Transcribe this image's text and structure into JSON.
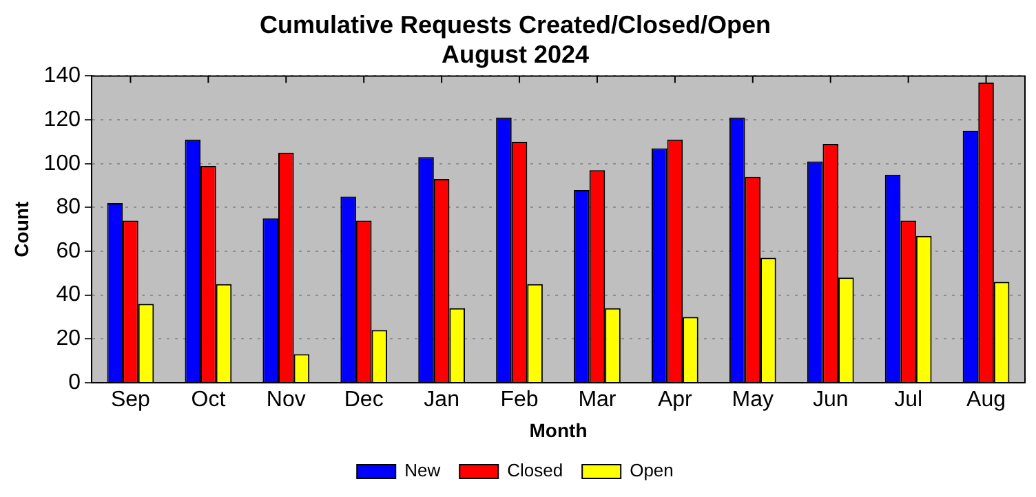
{
  "chart_data": {
    "type": "bar",
    "title": "Cumulative Requests Created/Closed/Open",
    "subtitle": "August 2024",
    "xlabel": "Month",
    "ylabel": "Count",
    "categories": [
      "Sep",
      "Oct",
      "Nov",
      "Dec",
      "Jan",
      "Feb",
      "Mar",
      "Apr",
      "May",
      "Jun",
      "Jul",
      "Aug"
    ],
    "series": [
      {
        "name": "New",
        "color": "#0000ff",
        "values": [
          82,
          111,
          75,
          85,
          103,
          121,
          88,
          107,
          121,
          101,
          95,
          115
        ]
      },
      {
        "name": "Closed",
        "color": "#ff0000",
        "values": [
          74,
          99,
          105,
          74,
          93,
          110,
          97,
          111,
          94,
          109,
          74,
          137
        ]
      },
      {
        "name": "Open",
        "color": "#ffff00",
        "values": [
          36,
          45,
          13,
          24,
          34,
          45,
          34,
          30,
          57,
          48,
          67,
          46
        ]
      }
    ],
    "ylim": [
      0,
      140
    ],
    "yticks": [
      0,
      20,
      40,
      60,
      80,
      100,
      120,
      140
    ],
    "grid": "y",
    "legend": "bottom"
  }
}
